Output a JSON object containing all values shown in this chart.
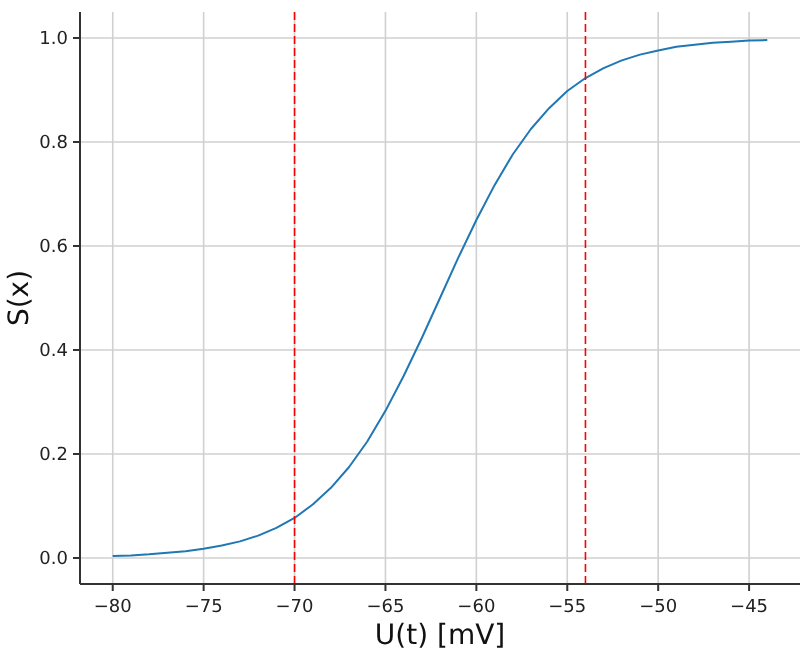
{
  "chart_data": {
    "type": "line",
    "xlabel": "U(t) [mV]",
    "ylabel": "S(x)",
    "x": [
      -80,
      -79,
      -78,
      -77,
      -76,
      -75,
      -74,
      -73,
      -72,
      -71,
      -70,
      -69,
      -68,
      -67,
      -66,
      -65,
      -64,
      -63,
      -62,
      -61,
      -60,
      -59,
      -58,
      -57,
      -56,
      -55,
      -54,
      -53,
      -52,
      -51,
      -50,
      -49,
      -48,
      -47,
      -46,
      -45,
      -44
    ],
    "series": [
      {
        "color": "#1f77b4",
        "values": [
          0.004,
          0.005,
          0.007,
          0.01,
          0.013,
          0.018,
          0.024,
          0.032,
          0.043,
          0.058,
          0.077,
          0.103,
          0.135,
          0.175,
          0.224,
          0.283,
          0.35,
          0.423,
          0.5,
          0.577,
          0.65,
          0.717,
          0.776,
          0.825,
          0.865,
          0.898,
          0.923,
          0.942,
          0.957,
          0.968,
          0.976,
          0.983,
          0.987,
          0.991,
          0.993,
          0.995,
          0.996
        ]
      }
    ],
    "xlim": [
      -81.8,
      -42.2
    ],
    "ylim": [
      -0.05,
      1.05
    ],
    "xticks": [
      {
        "value": -80,
        "label": "−80"
      },
      {
        "value": -75,
        "label": "−75"
      },
      {
        "value": -70,
        "label": "−70"
      },
      {
        "value": -65,
        "label": "−65"
      },
      {
        "value": -60,
        "label": "−60"
      },
      {
        "value": -55,
        "label": "−55"
      },
      {
        "value": -50,
        "label": "−50"
      },
      {
        "value": -45,
        "label": "−45"
      }
    ],
    "yticks": [
      {
        "value": 0,
        "label": "0.0"
      },
      {
        "value": 0.2,
        "label": "0.2"
      },
      {
        "value": 0.4,
        "label": "0.4"
      },
      {
        "value": 0.6,
        "label": "0.6"
      },
      {
        "value": 0.8,
        "label": "0.8"
      },
      {
        "value": 1,
        "label": "1.0"
      }
    ],
    "grid": true,
    "marker": "none",
    "line_style": "solid",
    "ref_lines": [
      {
        "axis": "x",
        "value": -70,
        "color": "#ff0000",
        "line_style": "dashed"
      },
      {
        "axis": "x",
        "value": -54,
        "color": "#ff0000",
        "line_style": "dashed"
      }
    ]
  }
}
